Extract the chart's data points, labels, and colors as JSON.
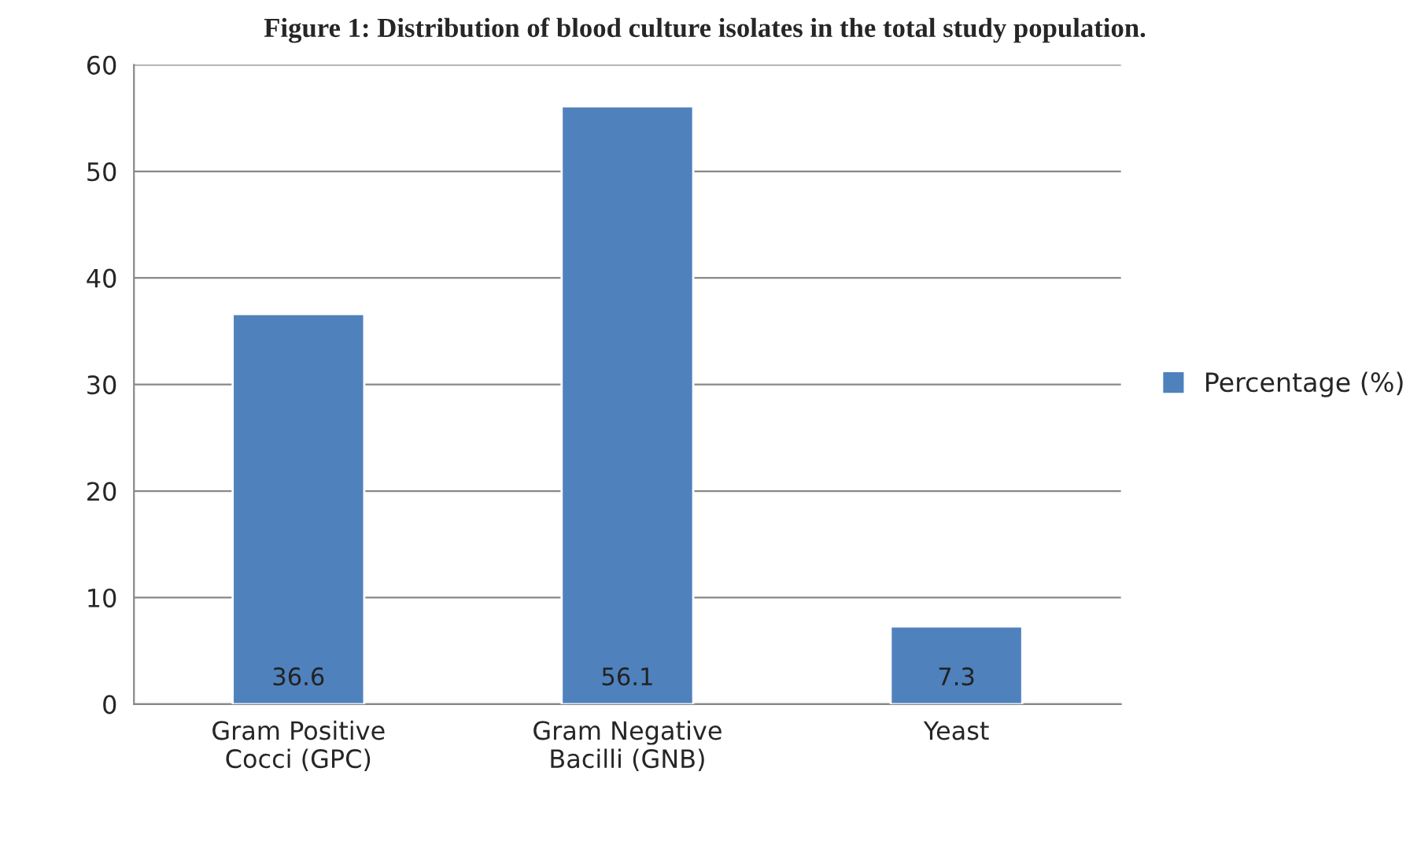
{
  "chart_data": {
    "type": "bar",
    "title": "Figure 1: Distribution of blood culture isolates in the total study population.",
    "categories": [
      "Gram Positive\nCocci (GPC)",
      "Gram Negative\nBacilli (GNB)",
      "Yeast"
    ],
    "series": [
      {
        "name": "Percentage (%)",
        "color": "#4f81bd",
        "values": [
          36.6,
          56.1,
          7.3
        ]
      }
    ],
    "ylim": [
      0,
      60
    ],
    "yticks": [
      0,
      10,
      20,
      30,
      40,
      50,
      60
    ],
    "grid": "y",
    "legend": "right",
    "data_labels": true
  }
}
